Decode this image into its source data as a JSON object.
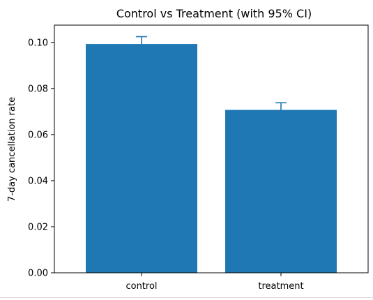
{
  "chart_data": {
    "type": "bar",
    "title": "Control vs Treatment (with 95% CI)",
    "xlabel": "",
    "ylabel": "7-day cancellation rate",
    "categories": [
      "control",
      "treatment"
    ],
    "values": [
      0.0993,
      0.0707
    ],
    "error_upper": [
      0.1025,
      0.0738
    ],
    "ylim": [
      0,
      0.1075
    ],
    "yticks": [
      0,
      0.02,
      0.04,
      0.06,
      0.08,
      0.1
    ],
    "ytick_labels": [
      "0.00",
      "0.02",
      "0.04",
      "0.06",
      "0.08",
      "0.10"
    ],
    "grid": false,
    "bar_color": "#1f77b4",
    "error_color": "#1f77b4"
  }
}
